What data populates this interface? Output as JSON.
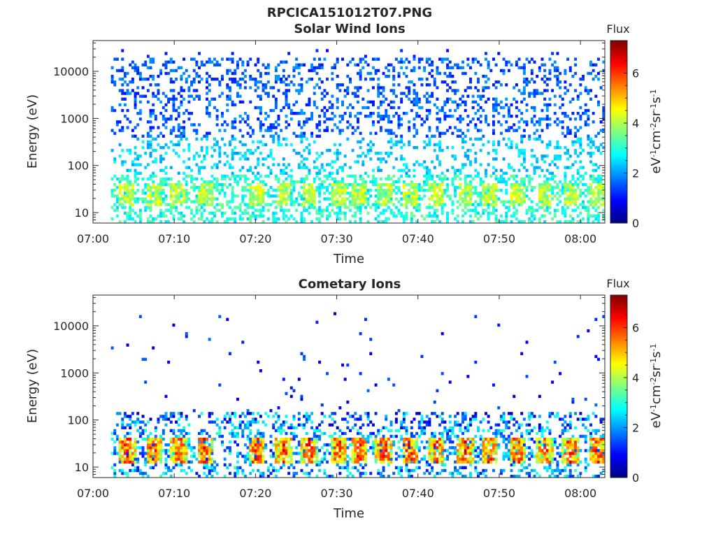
{
  "figure": {
    "title": "RPCICA151012T07.PNG"
  },
  "chart_data": [
    {
      "type": "heatmap",
      "title": "Solar Wind Ions",
      "xlabel": "Time",
      "ylabel": "Energy (eV)",
      "x_ticks": [
        "07:00",
        "07:10",
        "07:20",
        "07:30",
        "07:40",
        "07:50",
        "08:00"
      ],
      "x_range_minutes": [
        0,
        63
      ],
      "y_ticks": [
        "10",
        "100",
        "1000",
        "10000"
      ],
      "y_scale": "log",
      "y_range": [
        6,
        45000
      ],
      "colorbar": {
        "title": "Flux",
        "label": "eV-1cm-2sr-1s-1",
        "ticks": [
          "0",
          "2",
          "4",
          "6"
        ],
        "range": [
          0,
          7.3
        ],
        "colormap": "jet"
      },
      "heatmap_data": {
        "data_start_minute": 2.3,
        "data_end_minute": 63,
        "bursts_minutes": [
          4.2,
          7.5,
          10.5,
          13.8,
          20.2,
          23.5,
          26.6,
          30.2,
          32.8,
          35.8,
          39.0,
          42.2,
          45.8,
          48.8,
          52.2,
          55.6,
          58.8,
          62.0
        ],
        "peak_flux_low_energy": 4.3,
        "typical_flux_high_energy": 1.5
      }
    },
    {
      "type": "heatmap",
      "title": "Cometary Ions",
      "xlabel": "Time",
      "ylabel": "Energy (eV)",
      "x_ticks": [
        "07:00",
        "07:10",
        "07:20",
        "07:30",
        "07:40",
        "07:50",
        "08:00"
      ],
      "x_range_minutes": [
        0,
        63
      ],
      "y_ticks": [
        "10",
        "100",
        "1000",
        "10000"
      ],
      "y_scale": "log",
      "y_range": [
        6,
        45000
      ],
      "colorbar": {
        "title": "Flux",
        "label": "eV-1cm-2sr-1s-1",
        "ticks": [
          "0",
          "2",
          "4",
          "6"
        ],
        "range": [
          0,
          7.3
        ],
        "colormap": "jet"
      },
      "heatmap_data": {
        "data_start_minute": 2.3,
        "data_end_minute": 63,
        "bursts_minutes": [
          4.2,
          7.5,
          10.5,
          13.8,
          20.2,
          23.5,
          26.6,
          30.2,
          32.8,
          35.8,
          39.0,
          42.2,
          45.8,
          48.8,
          52.2,
          55.6,
          58.8,
          62.0
        ],
        "peak_flux_low_energy": 6.5,
        "typical_flux_high_energy": 0.8
      }
    }
  ]
}
